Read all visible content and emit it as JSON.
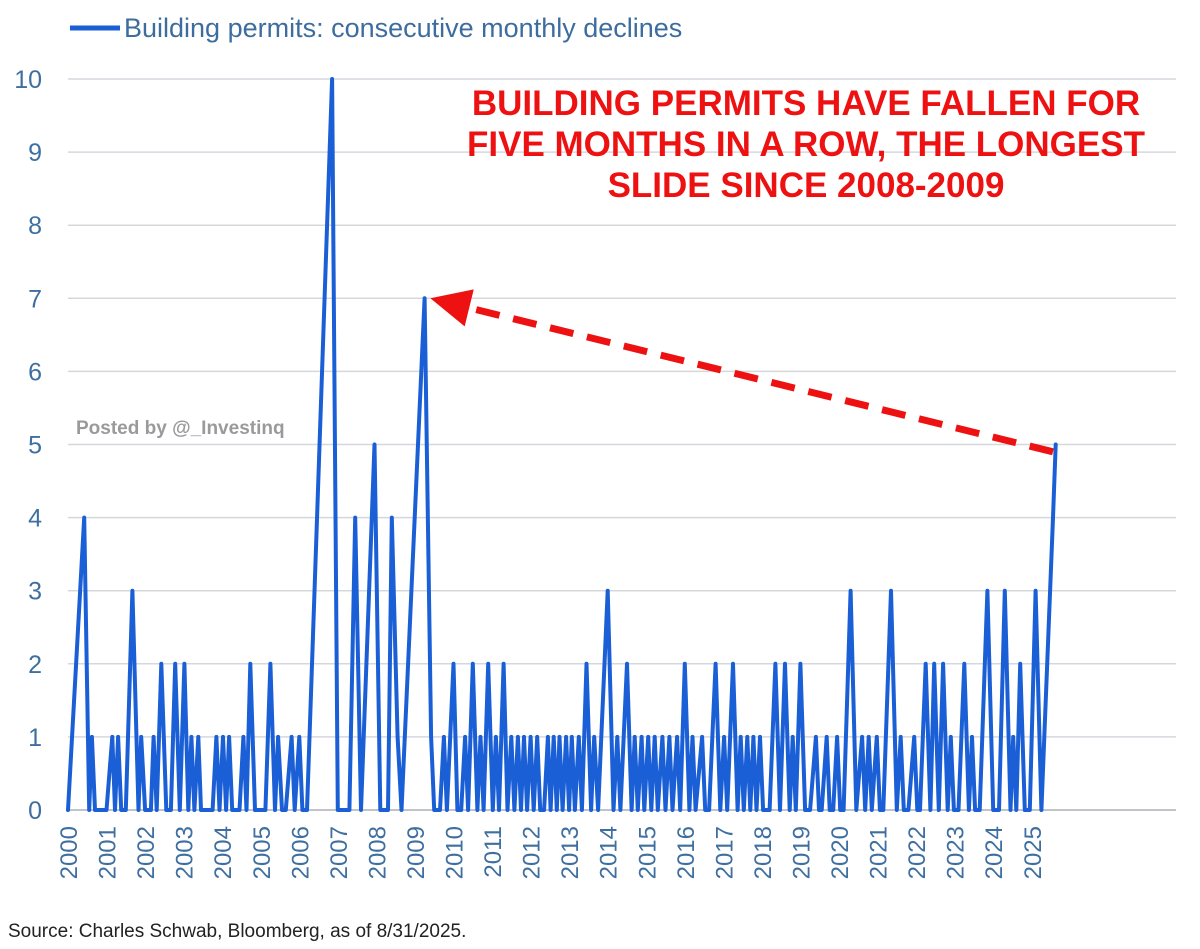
{
  "chart_data": {
    "type": "line",
    "legend": {
      "position": "top-left",
      "entries": [
        "Building permits: consecutive monthly declines"
      ]
    },
    "series": [
      {
        "name": "Building permits: consecutive monthly declines",
        "color": "#1a5fd6",
        "points": [
          [
            2000.0,
            0
          ],
          [
            2000.42,
            4
          ],
          [
            2000.55,
            0
          ],
          [
            2000.62,
            1
          ],
          [
            2000.7,
            0
          ],
          [
            2001.0,
            0
          ],
          [
            2001.15,
            1
          ],
          [
            2001.22,
            0
          ],
          [
            2001.3,
            1
          ],
          [
            2001.38,
            0
          ],
          [
            2001.5,
            0
          ],
          [
            2001.67,
            3
          ],
          [
            2001.83,
            0
          ],
          [
            2001.9,
            1
          ],
          [
            2002.0,
            0
          ],
          [
            2002.15,
            0
          ],
          [
            2002.22,
            1
          ],
          [
            2002.3,
            0
          ],
          [
            2002.42,
            2
          ],
          [
            2002.55,
            0
          ],
          [
            2002.67,
            0
          ],
          [
            2002.78,
            2
          ],
          [
            2002.9,
            0
          ],
          [
            2003.02,
            2
          ],
          [
            2003.12,
            0
          ],
          [
            2003.2,
            1
          ],
          [
            2003.28,
            0
          ],
          [
            2003.38,
            1
          ],
          [
            2003.45,
            0
          ],
          [
            2003.6,
            0
          ],
          [
            2003.75,
            0
          ],
          [
            2003.85,
            1
          ],
          [
            2003.93,
            0
          ],
          [
            2004.02,
            1
          ],
          [
            2004.1,
            0
          ],
          [
            2004.18,
            1
          ],
          [
            2004.26,
            0
          ],
          [
            2004.45,
            0
          ],
          [
            2004.55,
            1
          ],
          [
            2004.63,
            0
          ],
          [
            2004.73,
            2
          ],
          [
            2004.85,
            0
          ],
          [
            2004.95,
            0
          ],
          [
            2005.12,
            0
          ],
          [
            2005.25,
            2
          ],
          [
            2005.37,
            0
          ],
          [
            2005.45,
            1
          ],
          [
            2005.55,
            0
          ],
          [
            2005.65,
            0
          ],
          [
            2005.8,
            1
          ],
          [
            2005.88,
            0
          ],
          [
            2006.0,
            1
          ],
          [
            2006.08,
            0
          ],
          [
            2006.2,
            0
          ],
          [
            2006.85,
            10
          ],
          [
            2007.0,
            0
          ],
          [
            2007.3,
            0
          ],
          [
            2007.45,
            4
          ],
          [
            2007.6,
            0
          ],
          [
            2007.95,
            5
          ],
          [
            2008.1,
            0
          ],
          [
            2008.3,
            0
          ],
          [
            2008.4,
            4
          ],
          [
            2008.55,
            1
          ],
          [
            2008.65,
            0
          ],
          [
            2009.25,
            7
          ],
          [
            2009.42,
            1
          ],
          [
            2009.5,
            0
          ],
          [
            2009.65,
            0
          ],
          [
            2009.75,
            1
          ],
          [
            2009.83,
            0
          ],
          [
            2010.0,
            2
          ],
          [
            2010.1,
            0
          ],
          [
            2010.2,
            0
          ],
          [
            2010.3,
            1
          ],
          [
            2010.38,
            0
          ],
          [
            2010.5,
            2
          ],
          [
            2010.62,
            0
          ],
          [
            2010.7,
            1
          ],
          [
            2010.78,
            0
          ],
          [
            2010.9,
            2
          ],
          [
            2011.02,
            0
          ],
          [
            2011.1,
            1
          ],
          [
            2011.18,
            0
          ],
          [
            2011.3,
            2
          ],
          [
            2011.4,
            0
          ],
          [
            2011.5,
            1
          ],
          [
            2011.58,
            0
          ],
          [
            2011.67,
            1
          ],
          [
            2011.75,
            0
          ],
          [
            2011.83,
            1
          ],
          [
            2011.91,
            0
          ],
          [
            2012.0,
            1
          ],
          [
            2012.08,
            0
          ],
          [
            2012.17,
            1
          ],
          [
            2012.25,
            0
          ],
          [
            2012.35,
            0
          ],
          [
            2012.45,
            1
          ],
          [
            2012.52,
            0
          ],
          [
            2012.6,
            1
          ],
          [
            2012.68,
            0
          ],
          [
            2012.75,
            1
          ],
          [
            2012.83,
            0
          ],
          [
            2012.92,
            1
          ],
          [
            2013.0,
            0
          ],
          [
            2013.07,
            1
          ],
          [
            2013.15,
            0
          ],
          [
            2013.25,
            1
          ],
          [
            2013.33,
            0
          ],
          [
            2013.45,
            2
          ],
          [
            2013.57,
            0
          ],
          [
            2013.65,
            1
          ],
          [
            2013.75,
            0
          ],
          [
            2014.0,
            3
          ],
          [
            2014.15,
            0
          ],
          [
            2014.25,
            1
          ],
          [
            2014.33,
            0
          ],
          [
            2014.5,
            2
          ],
          [
            2014.62,
            0
          ],
          [
            2014.7,
            1
          ],
          [
            2014.78,
            0
          ],
          [
            2014.88,
            1
          ],
          [
            2014.95,
            0
          ],
          [
            2015.05,
            1
          ],
          [
            2015.13,
            0
          ],
          [
            2015.22,
            1
          ],
          [
            2015.3,
            0
          ],
          [
            2015.42,
            1
          ],
          [
            2015.5,
            0
          ],
          [
            2015.6,
            1
          ],
          [
            2015.68,
            0
          ],
          [
            2015.8,
            1
          ],
          [
            2015.88,
            0
          ],
          [
            2016.0,
            2
          ],
          [
            2016.12,
            0
          ],
          [
            2016.2,
            1
          ],
          [
            2016.28,
            0
          ],
          [
            2016.45,
            1
          ],
          [
            2016.53,
            0
          ],
          [
            2016.63,
            0
          ],
          [
            2016.8,
            2
          ],
          [
            2016.92,
            0
          ],
          [
            2017.02,
            1
          ],
          [
            2017.1,
            0
          ],
          [
            2017.25,
            2
          ],
          [
            2017.37,
            0
          ],
          [
            2017.45,
            1
          ],
          [
            2017.53,
            0
          ],
          [
            2017.62,
            1
          ],
          [
            2017.7,
            0
          ],
          [
            2017.78,
            1
          ],
          [
            2017.86,
            0
          ],
          [
            2017.95,
            1
          ],
          [
            2018.03,
            0
          ],
          [
            2018.2,
            0
          ],
          [
            2018.35,
            2
          ],
          [
            2018.47,
            0
          ],
          [
            2018.6,
            2
          ],
          [
            2018.72,
            0
          ],
          [
            2018.8,
            1
          ],
          [
            2018.88,
            0
          ],
          [
            2019.0,
            2
          ],
          [
            2019.12,
            0
          ],
          [
            2019.25,
            0
          ],
          [
            2019.4,
            1
          ],
          [
            2019.48,
            0
          ],
          [
            2019.55,
            0
          ],
          [
            2019.68,
            1
          ],
          [
            2019.76,
            0
          ],
          [
            2019.85,
            0
          ],
          [
            2019.95,
            1
          ],
          [
            2020.03,
            0
          ],
          [
            2020.12,
            0
          ],
          [
            2020.3,
            3
          ],
          [
            2020.45,
            0
          ],
          [
            2020.6,
            1
          ],
          [
            2020.68,
            0
          ],
          [
            2020.77,
            1
          ],
          [
            2020.85,
            0
          ],
          [
            2020.98,
            1
          ],
          [
            2021.06,
            0
          ],
          [
            2021.15,
            0
          ],
          [
            2021.35,
            3
          ],
          [
            2021.5,
            0
          ],
          [
            2021.6,
            1
          ],
          [
            2021.68,
            0
          ],
          [
            2021.8,
            0
          ],
          [
            2021.95,
            1
          ],
          [
            2022.03,
            0
          ],
          [
            2022.1,
            0
          ],
          [
            2022.25,
            2
          ],
          [
            2022.37,
            0
          ],
          [
            2022.47,
            2
          ],
          [
            2022.59,
            0
          ],
          [
            2022.7,
            2
          ],
          [
            2022.82,
            0
          ],
          [
            2022.9,
            1
          ],
          [
            2022.98,
            0
          ],
          [
            2023.1,
            0
          ],
          [
            2023.25,
            2
          ],
          [
            2023.37,
            0
          ],
          [
            2023.45,
            1
          ],
          [
            2023.53,
            0
          ],
          [
            2023.65,
            0
          ],
          [
            2023.85,
            3
          ],
          [
            2024.0,
            0
          ],
          [
            2024.15,
            0
          ],
          [
            2024.3,
            3
          ],
          [
            2024.45,
            0
          ],
          [
            2024.52,
            1
          ],
          [
            2024.6,
            0
          ],
          [
            2024.7,
            2
          ],
          [
            2024.82,
            0
          ],
          [
            2024.95,
            0
          ],
          [
            2025.1,
            3
          ],
          [
            2025.25,
            0
          ],
          [
            2025.4,
            2
          ],
          [
            2025.55,
            4
          ],
          [
            2025.62,
            5
          ]
        ]
      }
    ],
    "xlim": [
      2000,
      2025.62
    ],
    "ylim": [
      0,
      10
    ],
    "y_ticks": [
      0,
      1,
      2,
      3,
      4,
      5,
      6,
      7,
      8,
      9,
      10
    ],
    "x_ticks": [
      "2000",
      "2001",
      "2002",
      "2003",
      "2004",
      "2005",
      "2006",
      "2007",
      "2008",
      "2009",
      "2010",
      "2011",
      "2012",
      "2013",
      "2014",
      "2015",
      "2016",
      "2017",
      "2018",
      "2019",
      "2020",
      "2021",
      "2022",
      "2023",
      "2024",
      "2025"
    ],
    "grid": true,
    "annotation": {
      "lines": [
        "BUILDING  PERMITS HAVE FALLEN FOR",
        "FIVE MONTHS IN A ROW, THE LONGEST",
        "SLIDE SINCE 2008-2009"
      ],
      "color": "#ee1111",
      "arrow_from": [
        2025.55,
        4.9
      ],
      "arrow_to": [
        2009.4,
        7.0
      ]
    }
  },
  "watermark": "Posted by @_Investinq",
  "source": "Source: Charles Schwab, Bloomberg, as of 8/31/2025."
}
